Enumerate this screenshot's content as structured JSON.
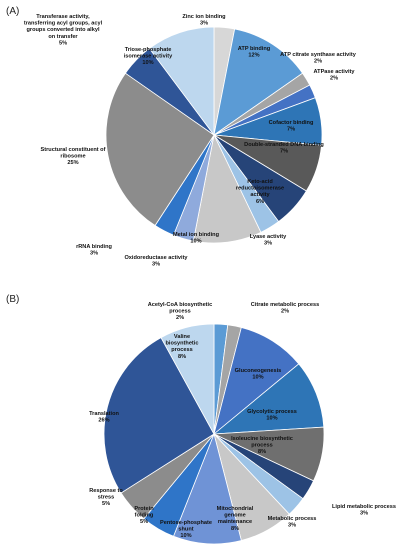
{
  "chart_data": [
    {
      "type": "pie",
      "panel_label": "(A)",
      "slices": [
        {
          "name": "Zinc ion binding",
          "value": 3,
          "pct_label": "3%",
          "color": "#d7d7d7"
        },
        {
          "name": "ATP binding",
          "value": 12,
          "pct_label": "12%",
          "color": "#5b9bd5"
        },
        {
          "name": "ATP citrate synthase activity",
          "value": 2,
          "pct_label": "2%",
          "color": "#a5a5a5"
        },
        {
          "name": "ATPase activity",
          "value": 2,
          "pct_label": "2%",
          "color": "#4472c4"
        },
        {
          "name": "Cofactor binding",
          "value": 7,
          "pct_label": "7%",
          "color": "#2e75b6"
        },
        {
          "name": "Double-stranded DNA binding",
          "value": 7,
          "pct_label": "7%",
          "color": "#595959"
        },
        {
          "name": "Keto-acid reductoisomerase activity",
          "value": 6,
          "pct_label": "6%",
          "color": "#264478"
        },
        {
          "name": "Lyase activity",
          "value": 3,
          "pct_label": "3%",
          "color": "#9dc3e6"
        },
        {
          "name": "Metal ion binding",
          "value": 10,
          "pct_label": "10%",
          "color": "#c8c8c8"
        },
        {
          "name": "Oxidoreductase activity",
          "value": 3,
          "pct_label": "3%",
          "color": "#8faadc"
        },
        {
          "name": "rRNA binding",
          "value": 3,
          "pct_label": "3%",
          "color": "#2f75c8"
        },
        {
          "name": "Structural constituent of ribosome",
          "value": 25,
          "pct_label": "25%",
          "color": "#8c8c8c"
        },
        {
          "name": "Transferase activity, transferring acyl groups, acyl groups converted into alkyl on transfer",
          "value": 5,
          "pct_label": "5%",
          "color": "#2f5597"
        },
        {
          "name": "Triose-phosphate isomerase activity",
          "value": 10,
          "pct_label": "10%",
          "color": "#bdd7ee"
        }
      ]
    },
    {
      "type": "pie",
      "panel_label": "(B)",
      "slices": [
        {
          "name": "Acetyl-CoA biosynthetic process",
          "value": 2,
          "pct_label": "2%",
          "color": "#5b9bd5"
        },
        {
          "name": "Citrate metabolic process",
          "value": 2,
          "pct_label": "2%",
          "color": "#a5a5a5"
        },
        {
          "name": "Gluconeogenesis",
          "value": 10,
          "pct_label": "10%",
          "color": "#4472c4"
        },
        {
          "name": "Glycolytic process",
          "value": 10,
          "pct_label": "10%",
          "color": "#2e75b6"
        },
        {
          "name": "Isoleucine biosynthetic process",
          "value": 8,
          "pct_label": "8%",
          "color": "#6f6f6f"
        },
        {
          "name": "Lipid metabolic process",
          "value": 3,
          "pct_label": "3%",
          "color": "#264478"
        },
        {
          "name": "Metabolic process",
          "value": 3,
          "pct_label": "3%",
          "color": "#9dc3e6"
        },
        {
          "name": "Mitochondrial genome maintenance",
          "value": 8,
          "pct_label": "8%",
          "color": "#c8c8c8"
        },
        {
          "name": "Pentose-phosphate shunt",
          "value": 10,
          "pct_label": "10%",
          "color": "#6f93d6"
        },
        {
          "name": "Protein folding",
          "value": 5,
          "pct_label": "5%",
          "color": "#2f75c8"
        },
        {
          "name": "Response to stress",
          "value": 5,
          "pct_label": "5%",
          "color": "#8c8c8c"
        },
        {
          "name": "Translation",
          "value": 26,
          "pct_label": "26%",
          "color": "#2f5597"
        },
        {
          "name": "Valine biosynthetic process",
          "value": 8,
          "pct_label": "8%",
          "color": "#bdd7ee"
        }
      ]
    }
  ]
}
